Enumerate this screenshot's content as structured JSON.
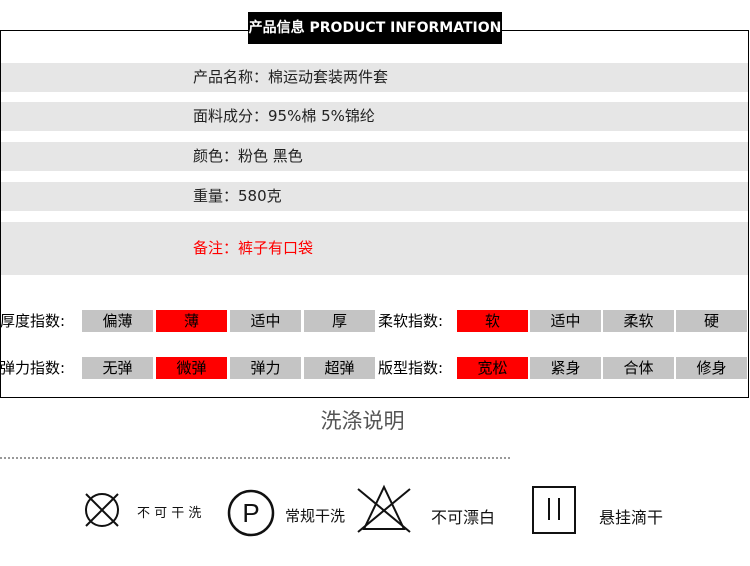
{
  "header": {
    "title": "产品信息  PRODUCT INFORMATION"
  },
  "info_rows": [
    "产品名称：棉运动套装两件套",
    "面料成分：95%棉 5%锦纶",
    "颜色：粉色 黑色",
    "重量：580克",
    "备注：裤子有口袋"
  ],
  "note_color": "#ff0000",
  "indices": [
    {
      "label": "厚度指数:",
      "options": [
        "偏薄",
        "薄",
        "适中",
        "厚"
      ],
      "selected": 1
    },
    {
      "label": "柔软指数:",
      "options": [
        "软",
        "适中",
        "柔软",
        "硬"
      ],
      "selected": 0
    },
    {
      "label": "弹力指数:",
      "options": [
        "无弹",
        "微弹",
        "弹力",
        "超弹"
      ],
      "selected": 1
    },
    {
      "label": "版型指数:",
      "options": [
        "宽松",
        "紧身",
        "合体",
        "修身"
      ],
      "selected": 0
    }
  ],
  "wash": {
    "title": "洗涤说明",
    "items": [
      {
        "icon": "no-wash-icon",
        "label": "不 可 干 洗"
      },
      {
        "icon": "dry-clean-p-icon",
        "label": "常规干洗"
      },
      {
        "icon": "no-bleach-icon",
        "label": "不可漂白"
      },
      {
        "icon": "drip-dry-icon",
        "label": "悬挂滴干"
      }
    ]
  }
}
